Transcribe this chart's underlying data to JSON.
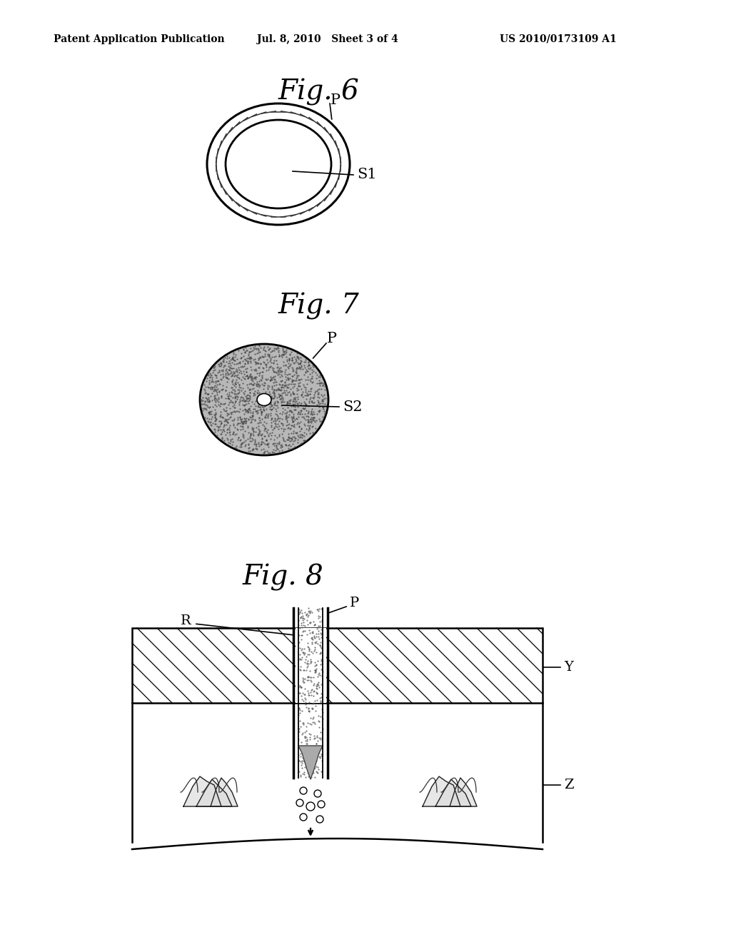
{
  "header_left": "Patent Application Publication",
  "header_mid": "Jul. 8, 2010   Sheet 3 of 4",
  "header_right": "US 2010/0173109 A1",
  "fig6_title": "Fig. 6",
  "fig7_title": "Fig. 7",
  "fig8_title": "Fig. 8",
  "fig6_label_P": "P",
  "fig6_label_S1": "S1",
  "fig7_label_P": "P",
  "fig7_label_S2": "S2",
  "fig8_label_P": "P",
  "fig8_label_R": "R",
  "fig8_label_Y": "Y",
  "fig8_label_Z": "Z",
  "bg_color": "#ffffff"
}
